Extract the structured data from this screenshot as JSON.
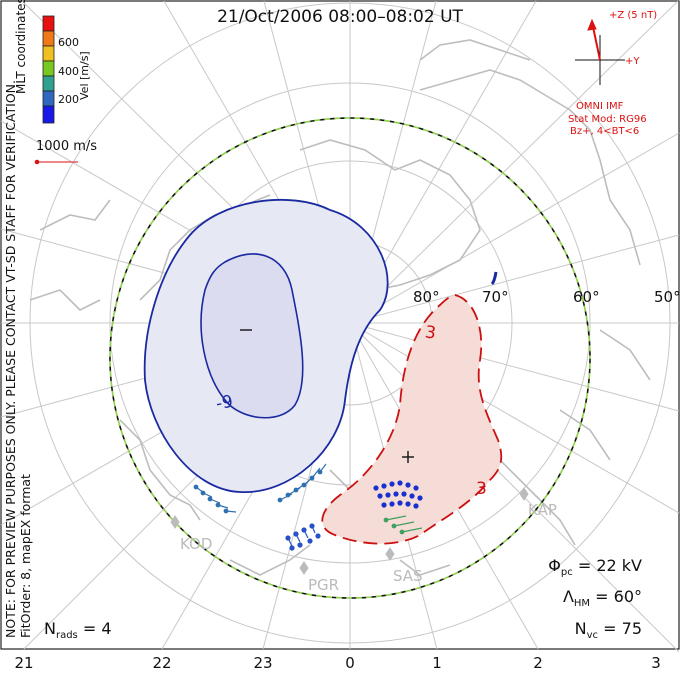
{
  "title": "21/Oct/2006 08:00–08:02 UT",
  "colorbar": {
    "labels": [
      "600",
      "400",
      "200"
    ],
    "unit": "Vel [m/s]",
    "coord_label": "MLT coordinates",
    "colors": [
      "#e81010",
      "#f07818",
      "#f0c020",
      "#78c820",
      "#30a090",
      "#3068c0",
      "#1818e8"
    ]
  },
  "scale_vector": "1000 m/s",
  "imf": {
    "z_label": "+Z (5 nT)",
    "y_label": "+Y",
    "source": "OMNI IMF",
    "model": "Stat Mod: RG96",
    "condition": "Bz+, 4<BT<6"
  },
  "notes": {
    "preview": "NOTE: FOR PREVIEW PURPOSES ONLY. PLEASE CONTACT VT-SD STAFF FOR VERIFICATION.",
    "fit": "FitOrder: 8, mapEX format"
  },
  "latitude_labels": [
    "80°",
    "70°",
    "60°",
    "50°"
  ],
  "mlt_ticks": [
    "21",
    "22",
    "23",
    "0",
    "1",
    "2",
    "3"
  ],
  "stations": [
    "KOD",
    "PGR",
    "SAS",
    "KAP"
  ],
  "contours": {
    "negative": "-9",
    "positive": "3",
    "minus_marker": "–",
    "plus_marker": "+"
  },
  "stats": {
    "phi_pc": {
      "symbol": "Φ",
      "sub": "pc",
      "value": "= 22 kV"
    },
    "lambda_hm": {
      "symbol": "Λ",
      "sub": "HM",
      "value": "= 60°"
    },
    "n_vc": {
      "symbol": "N",
      "sub": "vc",
      "value": "= 75"
    },
    "n_rads": {
      "symbol": "N",
      "sub": "rads",
      "value": "= 4"
    }
  },
  "colors": {
    "negative_cell": "#1a2aa0",
    "negative_fill": "#e6e8f4",
    "positive_cell": "#cc1010",
    "positive_fill": "#f6dcd6",
    "boundary_green": "#8ed04a",
    "grid": "#c8c8c8",
    "coastline": "#bdbdbd"
  }
}
